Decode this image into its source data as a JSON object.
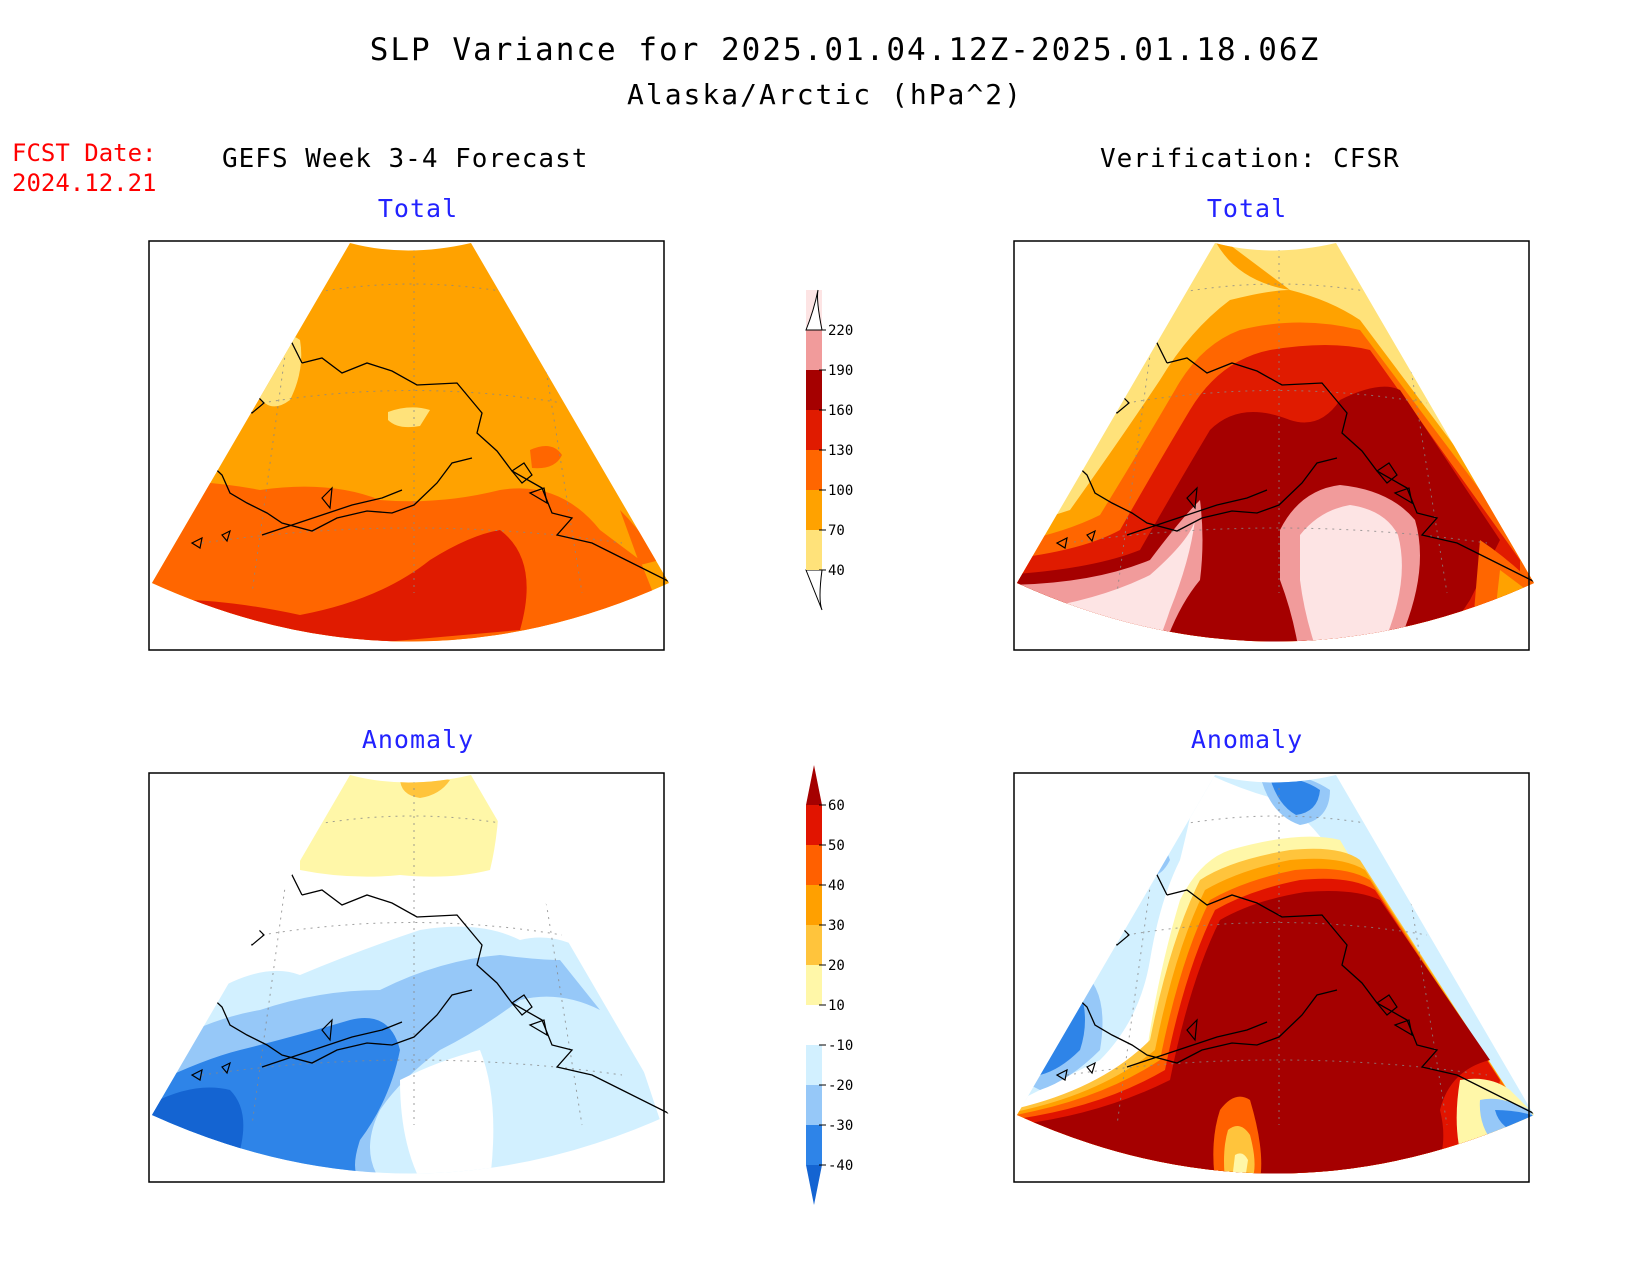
{
  "header": {
    "title": "SLP Variance for 2025.01.04.12Z-2025.01.18.06Z",
    "subtitle": "Alaska/Arctic (hPa^2)",
    "fcst_date_label": "FCST Date:",
    "fcst_date_value": "2024.12.21"
  },
  "columns": {
    "left": "GEFS Week 3-4 Forecast",
    "right": "Verification: CFSR"
  },
  "panels": {
    "forecast_total": "Total",
    "forecast_anomaly": "Anomaly",
    "verification_total": "Total",
    "verification_anomaly": "Anomaly"
  },
  "colorbars": {
    "total": {
      "labels": [
        "40",
        "70",
        "100",
        "130",
        "160",
        "190",
        "220"
      ],
      "colors": [
        "#ffe27a",
        "#ffa200",
        "#ff6600",
        "#e01b00",
        "#a50000",
        "#f19b9b",
        "#fde4e4"
      ]
    },
    "anomaly": {
      "labels": [
        "-40",
        "-30",
        "-20",
        "-10",
        "10",
        "20",
        "30",
        "40",
        "50",
        "60"
      ],
      "colors": [
        "#1464d2",
        "#2e84e8",
        "#96c8f8",
        "#d2f0ff",
        "#ffffff",
        "#fff7a8",
        "#ffc43c",
        "#ffa000",
        "#ff6000",
        "#e11400",
        "#a50000"
      ]
    }
  },
  "colors": {
    "title_text": "#000000",
    "fcst_date_text": "#ff0000",
    "panel_subtitle_text": "#2222ff",
    "coastline": "#000000"
  }
}
